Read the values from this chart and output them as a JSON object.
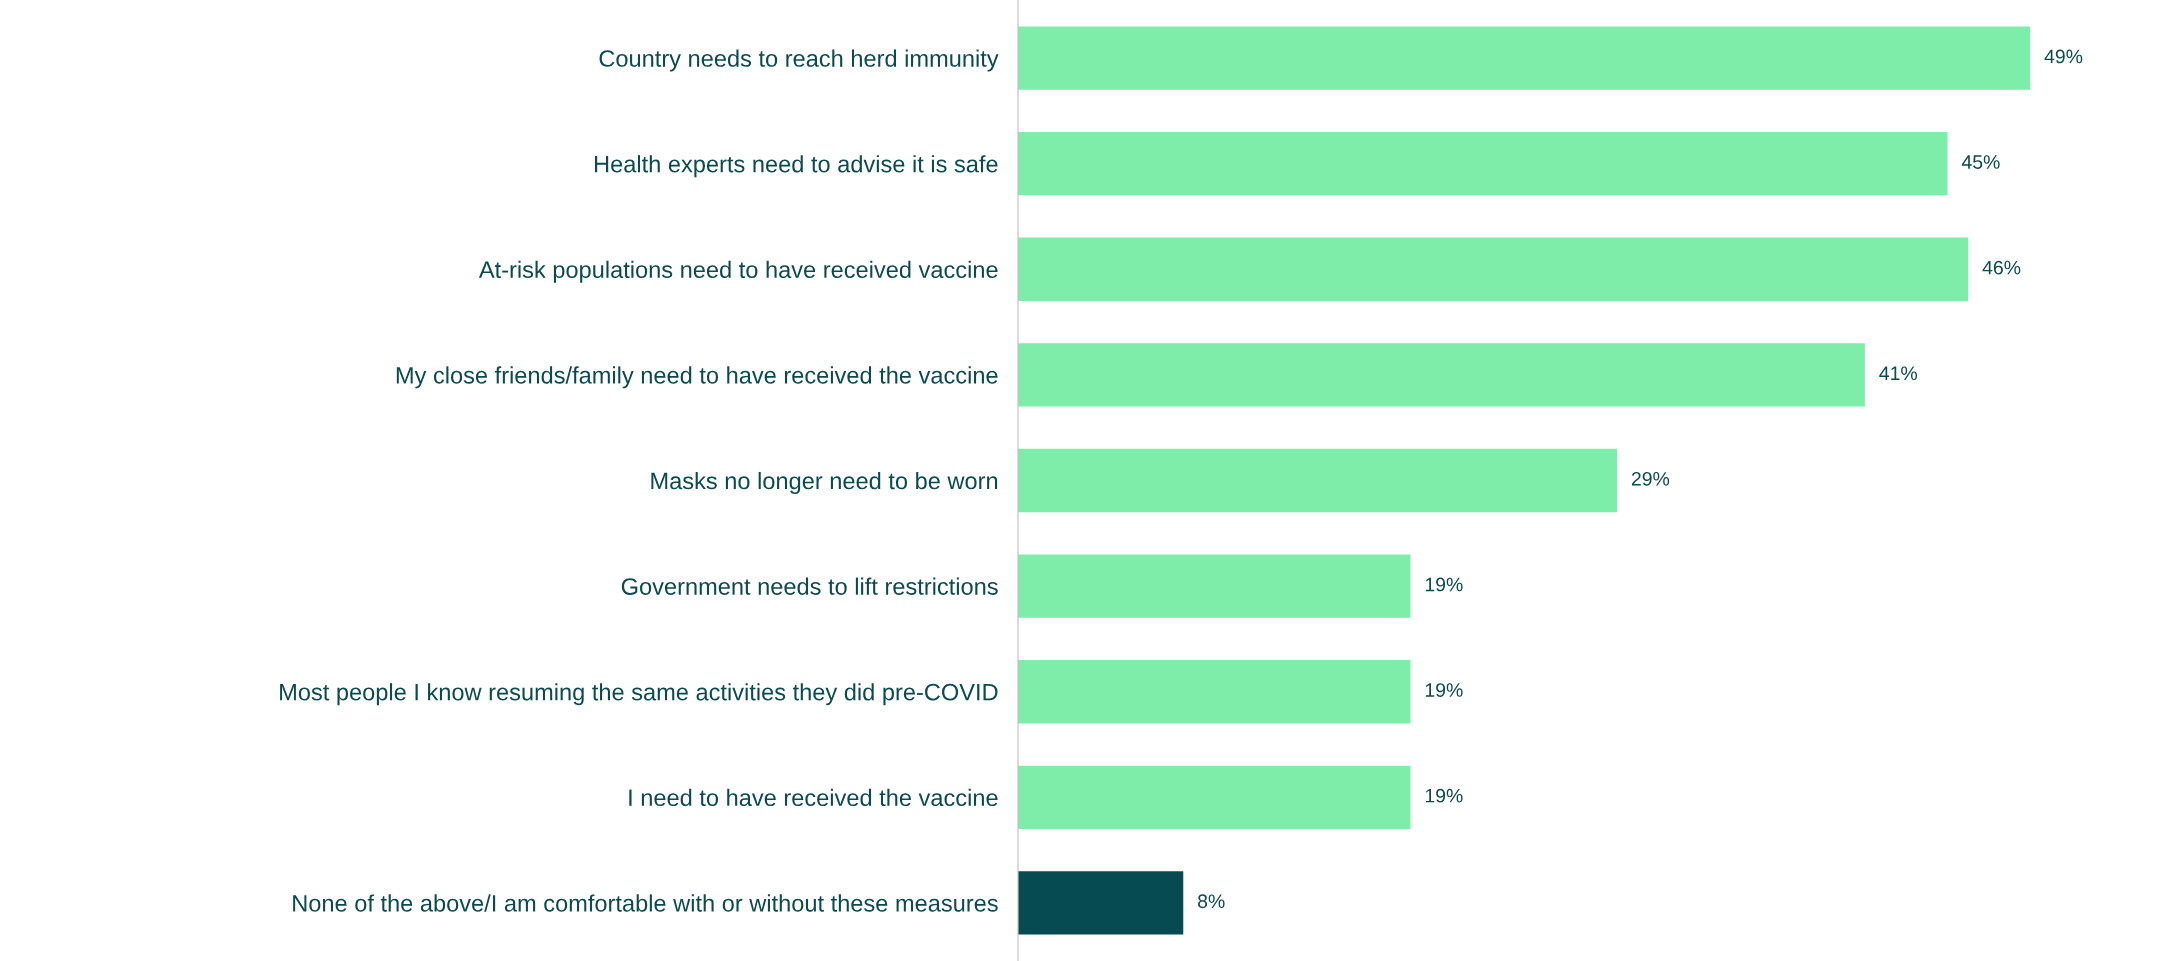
{
  "chart_data": {
    "type": "bar",
    "orientation": "horizontal",
    "categories": [
      "Country needs to reach herd immunity",
      "Health experts need to advise it is safe",
      "At-risk populations need to have received vaccine",
      "My close friends/family need to have received the vaccine",
      "Masks no longer need to be worn",
      "Government needs to lift restrictions",
      "Most people I know resuming the same activities they did pre-COVID",
      "I need to have received the vaccine",
      "None of the above/I am comfortable with or without these measures"
    ],
    "values": [
      49,
      45,
      46,
      41,
      29,
      19,
      19,
      19,
      8
    ],
    "value_labels": [
      "49%",
      "45%",
      "46%",
      "41%",
      "29%",
      "19%",
      "19%",
      "19%",
      "8%"
    ],
    "colors": [
      "#7eedaa",
      "#7eedaa",
      "#7eedaa",
      "#7eedaa",
      "#7eedaa",
      "#7eedaa",
      "#7eedaa",
      "#7eedaa",
      "#064a52"
    ],
    "grid": false,
    "legend": false
  }
}
